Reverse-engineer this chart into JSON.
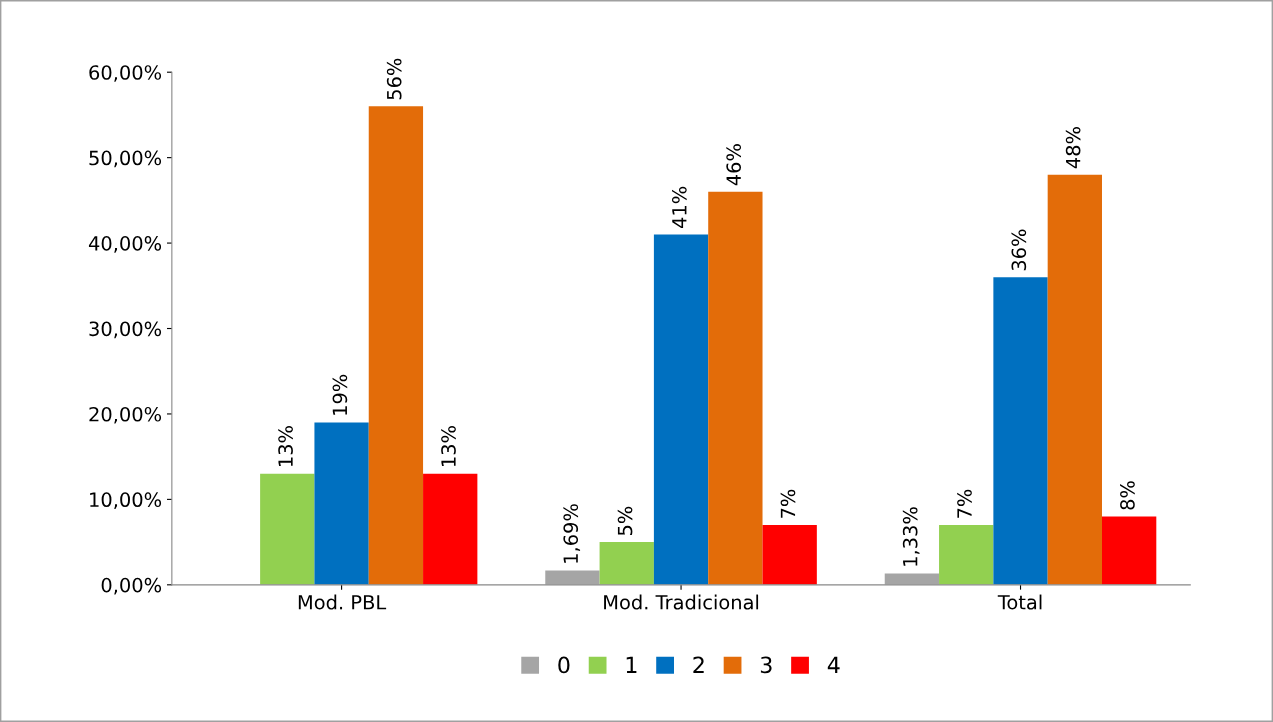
{
  "chart_data": {
    "type": "bar",
    "categories": [
      "Mod. PBL",
      "Mod. Tradicional",
      "Total"
    ],
    "series": [
      {
        "name": "0",
        "color": "#a5a5a5",
        "values": [
          0,
          1.69,
          1.33
        ],
        "value_labels": [
          null,
          "1,69%",
          "1,33%"
        ]
      },
      {
        "name": "1",
        "color": "#92d050",
        "values": [
          13,
          5,
          7
        ],
        "value_labels": [
          "13%",
          "5%",
          "7%"
        ]
      },
      {
        "name": "2",
        "color": "#0070c0",
        "values": [
          19,
          41,
          36
        ],
        "value_labels": [
          "19%",
          "41%",
          "36%"
        ]
      },
      {
        "name": "3",
        "color": "#e36c09",
        "values": [
          56,
          46,
          48
        ],
        "value_labels": [
          "56%",
          "46%",
          "48%"
        ]
      },
      {
        "name": "4",
        "color": "#ff0000",
        "values": [
          13,
          7,
          8
        ],
        "value_labels": [
          "13%",
          "7%",
          "8%"
        ]
      }
    ],
    "ylim": [
      0,
      60
    ],
    "yticks": [
      {
        "value": 0,
        "label": "0,00%"
      },
      {
        "value": 10,
        "label": "10,00%"
      },
      {
        "value": 20,
        "label": "20,00%"
      },
      {
        "value": 30,
        "label": "30,00%"
      },
      {
        "value": 40,
        "label": "40,00%"
      },
      {
        "value": 50,
        "label": "50,00%"
      },
      {
        "value": 60,
        "label": "60,00%"
      }
    ],
    "grid": false,
    "legend": "bottom"
  }
}
